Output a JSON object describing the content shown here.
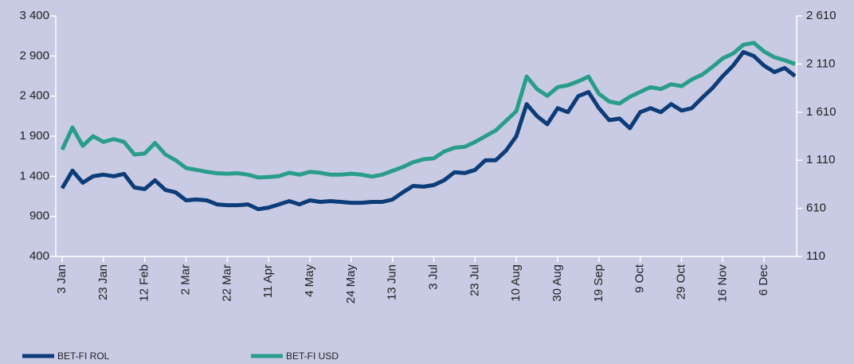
{
  "chart_data": {
    "type": "line",
    "categories": [
      "3 Jan",
      null,
      null,
      null,
      "23 Jan",
      null,
      null,
      null,
      "12 Feb",
      null,
      null,
      null,
      "2 Mar",
      null,
      null,
      null,
      "22 Mar",
      null,
      null,
      null,
      "11 Apr",
      null,
      null,
      null,
      "4 May",
      null,
      null,
      null,
      "24 May",
      null,
      null,
      null,
      "13 Jun",
      null,
      null,
      null,
      "3 Jul",
      null,
      null,
      null,
      "23 Jul",
      null,
      null,
      null,
      "10 Aug",
      null,
      null,
      null,
      "30 Aug",
      null,
      null,
      null,
      "19 Sep",
      null,
      null,
      null,
      "9 Oct",
      null,
      null,
      null,
      "29 Oct",
      null,
      null,
      null,
      "16 Nov",
      null,
      null,
      null,
      "6 Dec",
      null,
      null,
      null
    ],
    "series": [
      {
        "name": "BET-FI ROL",
        "color": "#0d3c78",
        "axis": "y",
        "values": [
          1250,
          1470,
          1320,
          1400,
          1420,
          1400,
          1430,
          1260,
          1240,
          1350,
          1230,
          1200,
          1100,
          1110,
          1100,
          1050,
          1040,
          1040,
          1050,
          990,
          1010,
          1050,
          1090,
          1050,
          1100,
          1080,
          1090,
          1080,
          1070,
          1070,
          1080,
          1080,
          1110,
          1200,
          1280,
          1270,
          1290,
          1350,
          1450,
          1440,
          1480,
          1600,
          1600,
          1720,
          1900,
          2300,
          2150,
          2050,
          2250,
          2200,
          2400,
          2450,
          2250,
          2100,
          2120,
          2000,
          2200,
          2250,
          2200,
          2300,
          2220,
          2250,
          2380,
          2500,
          2650,
          2780,
          2950,
          2900,
          2780,
          2700,
          2750,
          2650
        ]
      },
      {
        "name": "BET-FI USD",
        "color": "#2a9d8a",
        "axis": "y2",
        "values": [
          1220,
          1450,
          1260,
          1360,
          1300,
          1330,
          1300,
          1170,
          1180,
          1290,
          1170,
          1110,
          1030,
          1010,
          990,
          975,
          970,
          975,
          960,
          930,
          935,
          945,
          980,
          960,
          990,
          980,
          960,
          960,
          970,
          960,
          940,
          960,
          1000,
          1040,
          1090,
          1120,
          1130,
          1200,
          1240,
          1250,
          1300,
          1360,
          1420,
          1520,
          1620,
          1980,
          1850,
          1780,
          1870,
          1890,
          1930,
          1980,
          1800,
          1720,
          1700,
          1770,
          1820,
          1870,
          1850,
          1900,
          1880,
          1950,
          2000,
          2080,
          2170,
          2220,
          2310,
          2330,
          2240,
          2180,
          2150,
          2110
        ]
      }
    ],
    "ylim": [
      400,
      3400
    ],
    "yticks": [
      400,
      900,
      {
        "value": 1400,
        "label": "1 400"
      },
      {
        "value": 1900,
        "label": "1 900"
      },
      {
        "value": 2400,
        "label": "2 400"
      },
      {
        "value": 2900,
        "label": "2 900"
      },
      {
        "value": 3400,
        "label": "3 400"
      }
    ],
    "y2lim": [
      110,
      2610
    ],
    "y2ticks": [
      110,
      610,
      {
        "value": 1110,
        "label": "1 110"
      },
      {
        "value": 1610,
        "label": "1 610"
      },
      {
        "value": 2110,
        "label": "2 110"
      },
      {
        "value": 2610,
        "label": "2 610"
      }
    ]
  }
}
